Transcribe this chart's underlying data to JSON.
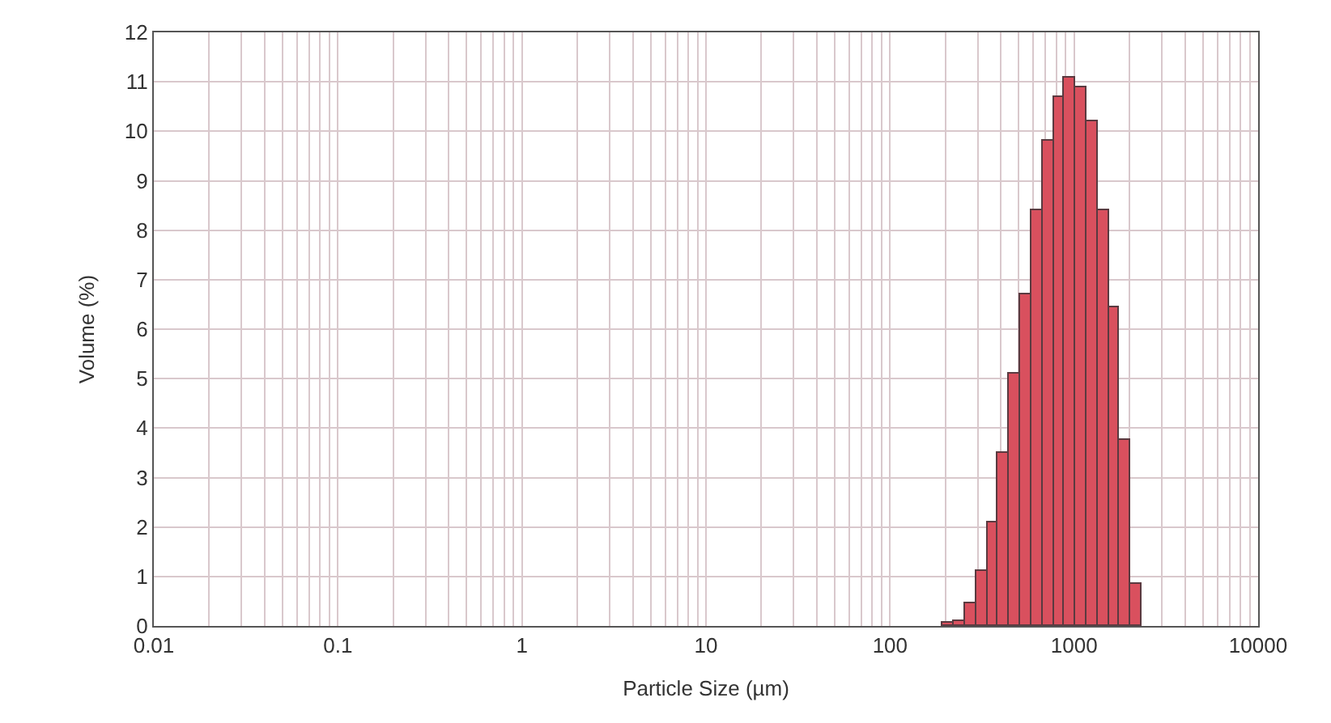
{
  "chart_data": {
    "type": "histogram",
    "xlabel": "Particle Size (µm)",
    "ylabel": "Volume (%)",
    "bins": [
      194,
      222,
      255,
      293,
      337,
      386,
      444,
      509,
      585,
      671,
      771,
      885,
      1016,
      1167,
      1340,
      1538,
      1766,
      2028,
      2328
    ],
    "values": [
      0.05,
      0.1,
      0.47,
      1.1,
      2.1,
      3.5,
      5.1,
      6.7,
      8.4,
      9.8,
      10.7,
      11.1,
      10.9,
      10.2,
      8.4,
      6.45,
      3.75,
      0.86
    ],
    "color": "#d9505e",
    "log": "x",
    "xlim": [
      0.01,
      10000
    ],
    "xticks": [
      0.01,
      0.1,
      1,
      10,
      100,
      1000,
      10000
    ],
    "ylim": [
      0,
      12
    ],
    "yticks": [
      0,
      1,
      2,
      3,
      4,
      5,
      6,
      7,
      8,
      9,
      10,
      11,
      12
    ],
    "grid": true
  }
}
